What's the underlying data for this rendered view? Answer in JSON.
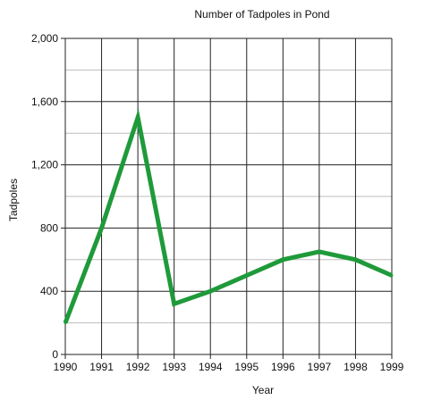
{
  "chart_data": {
    "type": "line",
    "title": "Number of Tadpoles in Pond",
    "xlabel": "Year",
    "ylabel": "Tadpoles",
    "x": [
      "1990",
      "1991",
      "1992",
      "1993",
      "1994",
      "1995",
      "1996",
      "1997",
      "1998",
      "1999"
    ],
    "ylim": [
      0,
      2000
    ],
    "yticks": [
      0,
      400,
      800,
      1200,
      1600,
      2000
    ],
    "ytick_labels": [
      "0",
      "400",
      "800",
      "1,200",
      "1,600",
      "2,000"
    ],
    "grid": true,
    "series": [
      {
        "values": [
          200,
          800,
          1500,
          320,
          400,
          500,
          600,
          650,
          600,
          500
        ],
        "color": "#1f9a3a"
      }
    ],
    "colors": {
      "line": "#1f9a3a",
      "major_grid": "#222222",
      "minor_grid": "#bdbdbd"
    }
  }
}
